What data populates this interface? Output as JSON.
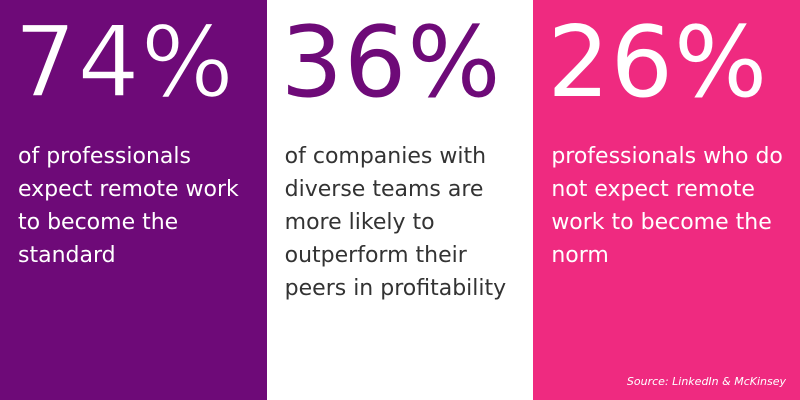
{
  "colors": {
    "purple": "#6e0a78",
    "white": "#ffffff",
    "pink": "#ef2a80",
    "dark_text": "#333333"
  },
  "stats": [
    {
      "value": "74%",
      "description": "of professionals expect remote work to become the standard"
    },
    {
      "value": "36%",
      "description": "of companies with diverse teams are more likely to outperform their peers in profitability"
    },
    {
      "value": "26%",
      "description": "professionals who do not expect remote work to become the norm"
    }
  ],
  "source": "Source: LinkedIn & McKinsey"
}
